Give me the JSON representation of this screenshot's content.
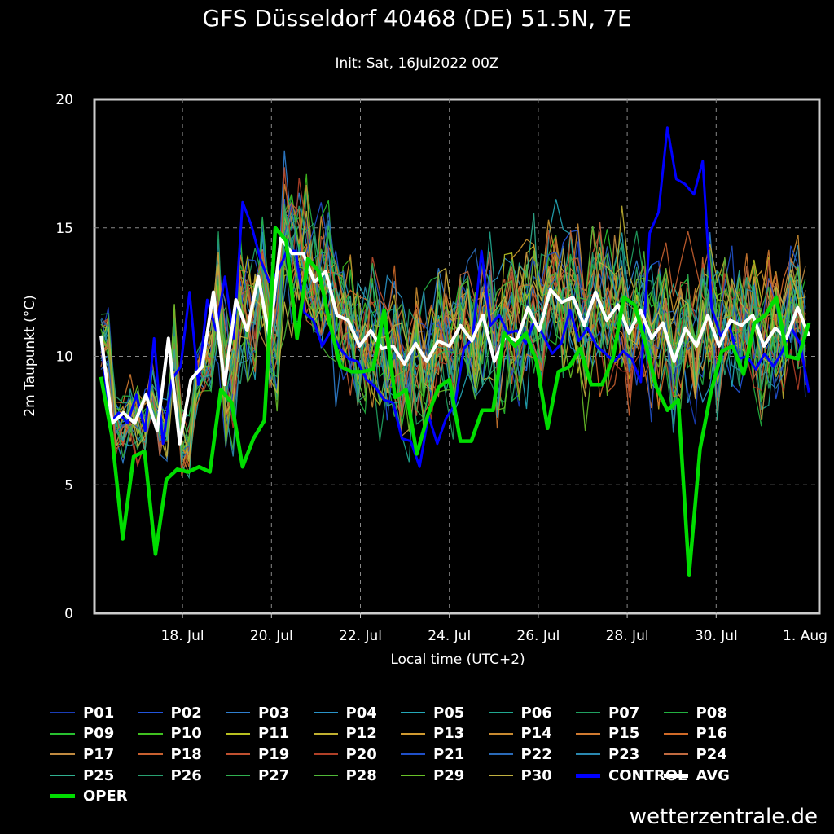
{
  "chart_data": {
    "type": "line",
    "title": "GFS Düsseldorf 40468 (DE) 51.5N, 7E",
    "subtitle": "Init: Sat, 16Jul2022 00Z",
    "xlabel": "Local time (UTC+2)",
    "ylabel": "2m Taupunkt (°C)",
    "ylim": [
      0,
      20
    ],
    "yticks": [
      0,
      5,
      10,
      15,
      20
    ],
    "xlim": [
      0,
      96
    ],
    "xticks": [
      {
        "label": "18. Jul",
        "x": 11
      },
      {
        "label": "20. Jul",
        "x": 23
      },
      {
        "label": "22. Jul",
        "x": 35
      },
      {
        "label": "24. Jul",
        "x": 47
      },
      {
        "label": "26. Jul",
        "x": 59
      },
      {
        "label": "28. Jul",
        "x": 71
      },
      {
        "label": "30. Jul",
        "x": 83
      },
      {
        "label": "1. Aug",
        "x": 95
      }
    ],
    "x_step_hours": 6,
    "grid": true,
    "series": [
      {
        "name": "CONTROL",
        "color": "#0000ff",
        "values": [
          10.7,
          7.4,
          7.8,
          7.4,
          8.5,
          7.1,
          10.7,
          6.6,
          9.1,
          9.6,
          12.5,
          8.9,
          12.2,
          11,
          13.1,
          10.7,
          16,
          15.1,
          13.8,
          12.9,
          13.3,
          14.1,
          14.1,
          11.7,
          11.4,
          10.4,
          11,
          10.3,
          9.9,
          9.8,
          9.1,
          8.8,
          8.3,
          8.2,
          6.8,
          6.7,
          5.7,
          7.7,
          6.6,
          7.6,
          8.1,
          10.3,
          10.7,
          14.1,
          11.2,
          11.6,
          10.9,
          11,
          10.5,
          11.4,
          10.8,
          10.1,
          10.5,
          11.8,
          10.6,
          11.1,
          10.4,
          10.1,
          9.8,
          10.2,
          9.9,
          9,
          14.8,
          15.6,
          18.9,
          16.9,
          16.7,
          16.3,
          17.6,
          11.9,
          10.8,
          11.2,
          9.9,
          10,
          9.5,
          10.1,
          9.6,
          10.2,
          11.1,
          10.5,
          8.6
        ]
      },
      {
        "name": "AVG",
        "color": "#ffffff",
        "values": [
          10.8,
          7.4,
          7.8,
          7.4,
          8.5,
          7.1,
          10.7,
          6.6,
          9.1,
          9.6,
          12.5,
          8.9,
          12.2,
          11,
          13.1,
          10.7,
          14.6,
          14,
          14,
          12.9,
          13.3,
          11.6,
          11.4,
          10.4,
          11,
          10.3,
          10.4,
          9.7,
          10.5,
          9.8,
          10.6,
          10.4,
          11.2,
          10.6,
          11.6,
          9.8,
          10.8,
          10.6,
          11.9,
          11,
          12.6,
          12.1,
          12.3,
          11.2,
          12.5,
          11.4,
          12,
          10.9,
          11.8,
          10.7,
          11.3,
          9.8,
          11.1,
          10.4,
          11.6,
          10.4,
          11.4,
          11.2,
          11.6,
          10.4,
          11.1,
          10.7,
          11.9,
          10.8
        ]
      },
      {
        "name": "OPER",
        "color": "#00dd00",
        "values": [
          9.2,
          6.9,
          2.9,
          6.1,
          6.3,
          2.3,
          5.2,
          5.6,
          5.5,
          5.7,
          5.5,
          8.7,
          8.2,
          5.7,
          6.8,
          7.5,
          15,
          14.5,
          10.7,
          13.8,
          13.3,
          11.3,
          9.6,
          9.4,
          9.4,
          9.5,
          11.8,
          8.4,
          8.7,
          6.2,
          7.7,
          8.8,
          9.1,
          6.7,
          6.7,
          7.9,
          7.9,
          10.9,
          10.4,
          10.9,
          9.8,
          7.2,
          9.4,
          9.6,
          10.3,
          8.9,
          8.9,
          9.9,
          12.3,
          12,
          10.5,
          8.8,
          7.9,
          8.3,
          1.5,
          6.4,
          8.6,
          10.2,
          10.4,
          9.3,
          11.3,
          11.6,
          12.3,
          10,
          9.9,
          11.3
        ]
      }
    ]
  },
  "legend": [
    {
      "label": "P01",
      "color": "#1a3db8"
    },
    {
      "label": "P02",
      "color": "#2255dd"
    },
    {
      "label": "P03",
      "color": "#2f7fd0"
    },
    {
      "label": "P04",
      "color": "#2a93c8"
    },
    {
      "label": "P05",
      "color": "#24a8b8"
    },
    {
      "label": "P06",
      "color": "#20a890"
    },
    {
      "label": "P07",
      "color": "#20a060"
    },
    {
      "label": "P08",
      "color": "#22b040"
    },
    {
      "label": "P09",
      "color": "#28c030"
    },
    {
      "label": "P10",
      "color": "#40c020"
    },
    {
      "label": "P11",
      "color": "#b8c020"
    },
    {
      "label": "P12",
      "color": "#c0b030"
    },
    {
      "label": "P13",
      "color": "#d09a30"
    },
    {
      "label": "P14",
      "color": "#c88a30"
    },
    {
      "label": "P15",
      "color": "#d07a30"
    },
    {
      "label": "P16",
      "color": "#d06a28"
    },
    {
      "label": "P17",
      "color": "#c08a40"
    },
    {
      "label": "P18",
      "color": "#c86030"
    },
    {
      "label": "P19",
      "color": "#c05030"
    },
    {
      "label": "P20",
      "color": "#b04028"
    },
    {
      "label": "P21",
      "color": "#2050c8"
    },
    {
      "label": "P22",
      "color": "#2a6ab8"
    },
    {
      "label": "P23",
      "color": "#2a88b0"
    },
    {
      "label": "P24",
      "color": "#c06a40"
    },
    {
      "label": "P25",
      "color": "#30b090"
    },
    {
      "label": "P26",
      "color": "#28a070"
    },
    {
      "label": "P27",
      "color": "#30b050"
    },
    {
      "label": "P28",
      "color": "#50b838"
    },
    {
      "label": "P29",
      "color": "#68c028"
    },
    {
      "label": "P30",
      "color": "#c0b040"
    },
    {
      "label": "CONTROL",
      "color": "#0000ff"
    },
    {
      "label": "AVG",
      "color": "#ffffff"
    },
    {
      "label": "OPER",
      "color": "#00dd00"
    }
  ],
  "watermark": "wetterzentrale.de"
}
